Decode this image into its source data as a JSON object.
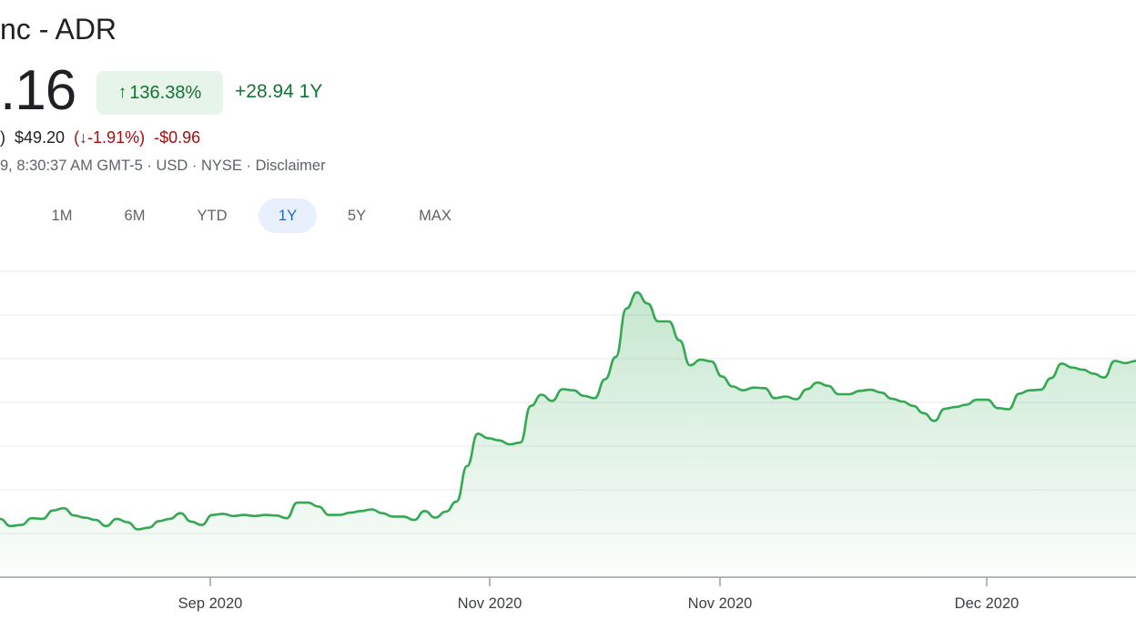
{
  "header": {
    "title": "nc - ADR",
    "price": ".16",
    "pct_change": "136.38%",
    "abs_change": "+28.94 1Y",
    "after_hours_lead": ")",
    "after_hours_price": "$49.20",
    "after_hours_pct": "(↓-1.91%)",
    "after_hours_abs": "-$0.96",
    "meta": "9, 8:30:37 AM GMT-5 · USD · NYSE · Disclaimer"
  },
  "tabs": [
    {
      "label": "1M",
      "active": false
    },
    {
      "label": "6M",
      "active": false
    },
    {
      "label": "YTD",
      "active": false
    },
    {
      "label": "1Y",
      "active": true
    },
    {
      "label": "5Y",
      "active": false
    },
    {
      "label": "MAX",
      "active": false
    }
  ],
  "colors": {
    "line": "#34a853",
    "fill_top": "#34a853",
    "grid": "#e8eaed",
    "axis": "#9aa0a6",
    "positive": "#137333",
    "negative": "#a50e0e"
  },
  "chart_data": {
    "type": "area",
    "series": [
      {
        "values": [
          20.5,
          19.2,
          19.4,
          20.6,
          20.5,
          22.0,
          22.4,
          21.1,
          20.7,
          20.3,
          19.2,
          20.5,
          19.9,
          18.6,
          18.9,
          20.1,
          20.5,
          21.5,
          20.0,
          19.4,
          21.2,
          21.4,
          21.0,
          21.2,
          21.0,
          21.2,
          21.1,
          20.6,
          23.4,
          23.4,
          22.7,
          21.2,
          21.2,
          21.6,
          21.9,
          22.2,
          21.5,
          20.9,
          20.9,
          20.3,
          21.9,
          20.7,
          21.8,
          23.6,
          30.0,
          35.8,
          35.0,
          34.6,
          33.9,
          34.2,
          40.8,
          42.8,
          41.7,
          43.8,
          43.6,
          42.6,
          42.2,
          45.6,
          49.6,
          58.3,
          61.2,
          59.2,
          56.0,
          56.0,
          52.6,
          48.1,
          49.1,
          48.8,
          46.1,
          44.3,
          43.6,
          44.1,
          44.0,
          42.2,
          42.5,
          42.0,
          43.8,
          45.0,
          44.4,
          42.9,
          42.9,
          43.5,
          43.7,
          43.2,
          42.1,
          41.6,
          40.8,
          39.5,
          38.1,
          40.3,
          40.6,
          41.0,
          41.9,
          41.9,
          40.4,
          40.2,
          43.0,
          43.6,
          43.7,
          45.8,
          48.4,
          47.7,
          47.3,
          46.6,
          45.9,
          48.9,
          48.5,
          48.9
        ]
      }
    ],
    "x_ticks": [
      "Sep 2020",
      "Nov 2020",
      "Nov 2020",
      "Dec 2020"
    ],
    "grid": true
  }
}
